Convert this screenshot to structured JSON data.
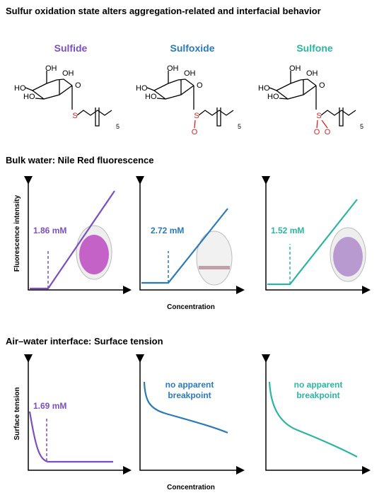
{
  "title": "Sulfur oxidation state alters aggregation-related and interfacial behavior",
  "compounds": [
    {
      "name": "Sulfide",
      "atoms": [
        "OH",
        "OH",
        "HO",
        "HO",
        "O",
        "S",
        "5"
      ]
    },
    {
      "name": "Sulfoxide",
      "atoms": [
        "OH",
        "OH",
        "HO",
        "HO",
        "O",
        "S",
        "5",
        "O"
      ]
    },
    {
      "name": "Sulfone",
      "atoms": [
        "OH",
        "OH",
        "HO",
        "HO",
        "O",
        "S",
        "5",
        "O",
        "O"
      ]
    }
  ],
  "fluorescence": {
    "heading": "Bulk water: Nile Red fluorescence",
    "y_label": "Fluorescence intensity",
    "x_label": "Concentration",
    "labels": [
      "1.86 mM",
      "2.72 mM",
      "1.52 mM"
    ]
  },
  "surface": {
    "heading": "Air–water interface: Surface tension",
    "y_label": "Surface tension",
    "x_label": "Concentration",
    "labels": [
      "1.69 mM",
      [
        "no apparent",
        "breakpoint"
      ],
      [
        "no apparent",
        "breakpoint"
      ]
    ]
  }
}
